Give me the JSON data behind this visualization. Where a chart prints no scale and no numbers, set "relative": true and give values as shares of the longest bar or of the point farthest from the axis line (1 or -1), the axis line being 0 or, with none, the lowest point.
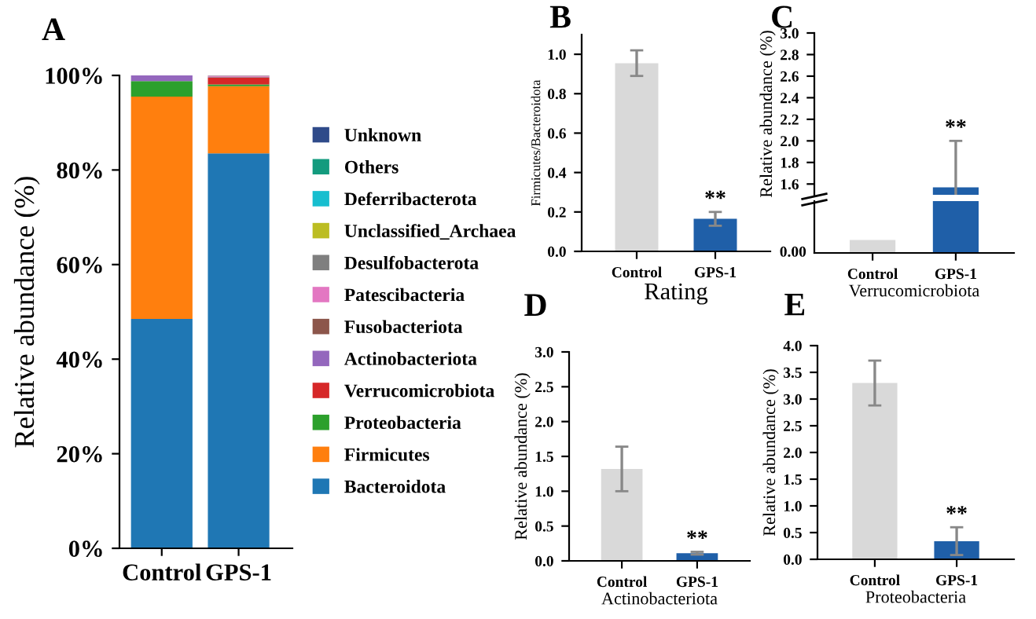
{
  "chart_data": [
    {
      "type": "bar",
      "title": "A",
      "ylabel": "Relative abundance (%)",
      "categories": [
        "Control",
        "GPS-1"
      ],
      "stacked": true,
      "legend": "right",
      "ylim": [
        0,
        100
      ],
      "yticks": [
        {
          "value": 0,
          "label": "0%"
        },
        {
          "value": 20,
          "label": "20%"
        },
        {
          "value": 40,
          "label": "40%"
        },
        {
          "value": 60,
          "label": "60%"
        },
        {
          "value": 80,
          "label": "80%"
        },
        {
          "value": 100,
          "label": "100%"
        }
      ],
      "series": [
        {
          "name": "Bacteroidota",
          "color": "#1f77b4",
          "values": [
            48.5,
            83.5
          ]
        },
        {
          "name": "Firmicutes",
          "color": "#ff7f0e",
          "values": [
            47.0,
            14.2
          ]
        },
        {
          "name": "Proteobacteria",
          "color": "#2ca02c",
          "values": [
            3.3,
            0.4
          ]
        },
        {
          "name": "Verrucomicrobiota",
          "color": "#d62728",
          "values": [
            0,
            1.4
          ]
        },
        {
          "name": "Actinobacteriota",
          "color": "#9467bd",
          "values": [
            1.2,
            0.1
          ]
        },
        {
          "name": "Fusobacteriota",
          "color": "#8c564b",
          "values": [
            0,
            0.1
          ]
        },
        {
          "name": "Patescibacteria",
          "color": "#e377c2",
          "values": [
            0,
            0.2
          ]
        },
        {
          "name": "Desulfobacterota",
          "color": "#7f7f7f",
          "values": [
            0,
            0.1
          ]
        },
        {
          "name": "Unclassified_Archaea",
          "color": "#bcbd22",
          "values": [
            0,
            0
          ]
        },
        {
          "name": "Deferribacterota",
          "color": "#17becf",
          "values": [
            0,
            0
          ]
        },
        {
          "name": "Others",
          "color": "#139b7e",
          "values": [
            0,
            0
          ]
        },
        {
          "name": "Unknown",
          "color": "#2f4b8a",
          "values": [
            0,
            0
          ]
        }
      ]
    },
    {
      "type": "bar",
      "title": "B",
      "xlabel": "Rating",
      "ylabel": "Firmicutes/Bacteroidota",
      "categories": [
        "Control",
        "GPS-1"
      ],
      "values": [
        0.955,
        0.165
      ],
      "errors": [
        0.065,
        0.035
      ],
      "colors": [
        "#d9d9d9",
        "#1f5fa8"
      ],
      "ylim": [
        0,
        1.1
      ],
      "yticks": [
        {
          "value": 0,
          "label": "0.0"
        },
        0.2,
        0.4,
        0.6,
        0.8,
        {
          "value": 1,
          "label": "1.0"
        }
      ],
      "annotations": [
        {
          "text": "**",
          "x": "GPS-1",
          "y": 0.2
        }
      ]
    },
    {
      "type": "bar",
      "title": "C",
      "ylabel": "Relative abundance (%)",
      "categories": [
        "Control",
        "GPS-1"
      ],
      "values": [
        null,
        1.57
      ],
      "errors": [
        null,
        0.43
      ],
      "colors": [
        "#d9d9d9",
        "#1f5fa8"
      ],
      "ylim": [
        1.5,
        3.0
      ],
      "yticks": [
        1.6,
        1.8,
        {
          "value": 2,
          "label": "2.0"
        },
        2.2,
        2.4,
        2.6,
        2.8,
        {
          "value": 3,
          "label": "3.0"
        }
      ],
      "tick_labels": "y",
      "annotations": [
        {
          "text": "**",
          "x": "GPS-1",
          "y": 2.0
        }
      ]
    },
    {
      "type": "bar",
      "xlabel": "Verrucomicrobiota",
      "categories": [
        "Control",
        "GPS-1"
      ],
      "values": [
        0.25,
        1
      ],
      "colors": [
        "#d9d9d9",
        "#1f5fa8"
      ],
      "relative": true,
      "annotations": [
        "0.00"
      ]
    },
    {
      "type": "bar",
      "title": "D",
      "xlabel": "Actinobacteriota",
      "ylabel": "Relative abundance (%)",
      "categories": [
        "Control",
        "GPS-1"
      ],
      "values": [
        1.32,
        0.11
      ],
      "errors": [
        0.32,
        0.02
      ],
      "colors": [
        "#d9d9d9",
        "#1f5fa8"
      ],
      "ylim": [
        0,
        3.0
      ],
      "yticks": [
        {
          "value": 0,
          "label": "0.0"
        },
        0.5,
        {
          "value": 1,
          "label": "1.0"
        },
        1.5,
        {
          "value": 2,
          "label": "2.0"
        },
        2.5,
        {
          "value": 3,
          "label": "3.0"
        }
      ],
      "annotations": [
        {
          "text": "**",
          "x": "GPS-1",
          "y": 0.13
        }
      ]
    },
    {
      "type": "bar",
      "title": "E",
      "xlabel": "Proteobacteria",
      "ylabel": "Relative abundance (%)",
      "categories": [
        "Control",
        "GPS-1"
      ],
      "values": [
        3.3,
        0.34
      ],
      "errors": [
        0.42,
        0.26
      ],
      "colors": [
        "#d9d9d9",
        "#1f5fa8"
      ],
      "ylim": [
        0,
        4.0
      ],
      "yticks": [
        {
          "value": 0,
          "label": "0.0"
        },
        0.5,
        {
          "value": 1,
          "label": "1.0"
        },
        1.5,
        {
          "value": 2,
          "label": "2.0"
        },
        2.5,
        {
          "value": 3,
          "label": "3.0"
        },
        3.5,
        {
          "value": 4,
          "label": "4.0"
        }
      ],
      "annotations": [
        {
          "text": "**",
          "x": "GPS-1",
          "y": 0.6
        }
      ]
    }
  ]
}
